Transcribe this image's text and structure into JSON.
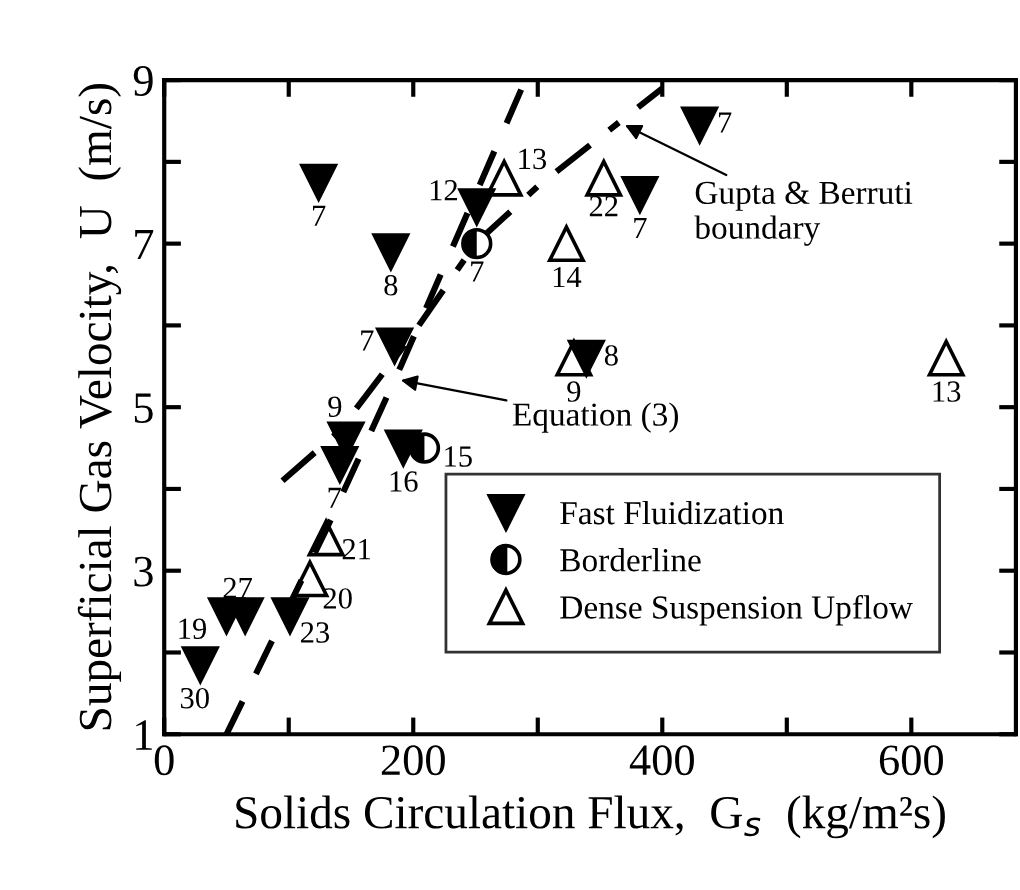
{
  "chart_data": {
    "type": "scatter",
    "xlabel": "Solids Circulation Flux,  G$_{s}$  (kg/m²s)",
    "ylabel": "Superficial Gas Velocity,  U  (m/s)",
    "xlim": [
      0,
      684
    ],
    "ylim": [
      1,
      9
    ],
    "xticks": [
      0,
      {
        "value": 100,
        "label": null
      },
      200,
      {
        "value": 300,
        "label": null
      },
      400,
      {
        "value": 500,
        "label": null
      },
      600
    ],
    "yticks": [
      1,
      {
        "value": 2,
        "label": null
      },
      3,
      {
        "value": 4,
        "label": null
      },
      5,
      {
        "value": 6,
        "label": null
      },
      7,
      {
        "value": 8,
        "label": null
      },
      9
    ],
    "grid": false,
    "legend": "bottom right",
    "series": [
      {
        "name": "Fast Fluidization",
        "marker": "triangle_down",
        "color": "#000000",
        "x": [
          124,
          182,
          185,
          251,
          430,
          382,
          339,
          146,
          141,
          192,
          50,
          29,
          101,
          65
        ],
        "values": [
          7.75,
          6.9,
          5.75,
          7.45,
          8.45,
          7.6,
          5.6,
          4.6,
          4.3,
          4.5,
          2.45,
          1.85,
          2.45,
          2.45
        ]
      },
      {
        "name": "Borderline",
        "marker": "circle",
        "color": "#000000",
        "x": [
          251,
          209
        ],
        "values": [
          7.0,
          4.5
        ]
      },
      {
        "name": "Dense Suspension Upflow",
        "marker": "triangle",
        "color": "#000000",
        "x": [
          273,
          353,
          323,
          329,
          628,
          130,
          117
        ],
        "values": [
          7.8,
          7.8,
          7.0,
          5.6,
          5.6,
          3.4,
          2.9
        ]
      },
      {
        "type": "line",
        "line_style": "dashed",
        "color": "#000000",
        "x": [
          50,
          130,
          190,
          290
        ],
        "values": [
          1.0,
          3.5,
          5.5,
          9.0
        ]
      },
      {
        "type": "line",
        "line_style": "dashdot",
        "color": "#000000",
        "x": [
          95,
          140,
          200,
          250,
          300,
          400
        ],
        "values": [
          4.1,
          4.7,
          5.9,
          7.0,
          7.7,
          8.9
        ]
      }
    ],
    "annotations": [
      {
        "text": "Equation (3)",
        "x": 190,
        "y": 5.33
      },
      {
        "text": "Gupta & Berruti\nboundary",
        "x": 370,
        "y": 8.45
      },
      {
        "text": "7",
        "x": 124,
        "y": 7.75
      },
      {
        "text": "8",
        "x": 182,
        "y": 6.9
      },
      {
        "text": "7",
        "x": 185,
        "y": 5.75
      },
      {
        "text": "12",
        "x": 251,
        "y": 7.45
      },
      {
        "text": "7",
        "x": 430,
        "y": 8.45
      },
      {
        "text": "7",
        "x": 382,
        "y": 7.6
      },
      {
        "text": "8",
        "x": 339,
        "y": 5.6
      },
      {
        "text": "9",
        "x": 146,
        "y": 4.6
      },
      {
        "text": "7",
        "x": 141,
        "y": 4.3
      },
      {
        "text": "16",
        "x": 192,
        "y": 4.5
      },
      {
        "text": "27",
        "x": 50,
        "y": 2.45
      },
      {
        "text": "19",
        "x": 29,
        "y": 1.85
      },
      {
        "text": "23",
        "x": 101,
        "y": 2.45
      },
      {
        "text": "30",
        "x": 29,
        "y": 1.85
      },
      {
        "text": "7",
        "x": 251,
        "y": 7.0
      },
      {
        "text": "15",
        "x": 209,
        "y": 4.5
      },
      {
        "text": "13",
        "x": 273,
        "y": 7.8
      },
      {
        "text": "22",
        "x": 353,
        "y": 7.8
      },
      {
        "text": "14",
        "x": 323,
        "y": 7.0
      },
      {
        "text": "9",
        "x": 329,
        "y": 5.6
      },
      {
        "text": "13",
        "x": 628,
        "y": 5.6
      },
      {
        "text": "21",
        "x": 130,
        "y": 3.4
      },
      {
        "text": "20",
        "x": 117,
        "y": 2.9
      }
    ]
  }
}
